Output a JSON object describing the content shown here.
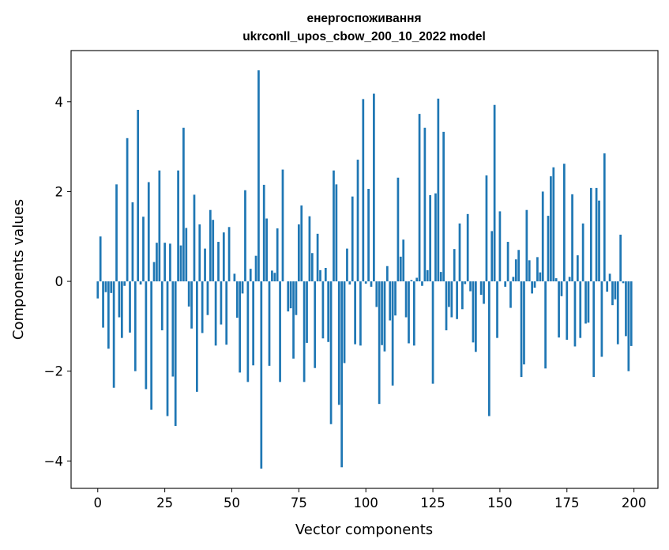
{
  "chart_data": {
    "type": "bar",
    "title": "енергоспоживання",
    "subtitle": "ukrconll_upos_cbow_200_10_2022 model",
    "xlabel": "Vector components",
    "ylabel": "Components values",
    "x": [
      0,
      1,
      2,
      3,
      4,
      5,
      6,
      7,
      8,
      9,
      10,
      11,
      12,
      13,
      14,
      15,
      16,
      17,
      18,
      19,
      20,
      21,
      22,
      23,
      24,
      25,
      26,
      27,
      28,
      29,
      30,
      31,
      32,
      33,
      34,
      35,
      36,
      37,
      38,
      39,
      40,
      41,
      42,
      43,
      44,
      45,
      46,
      47,
      48,
      49,
      50,
      51,
      52,
      53,
      54,
      55,
      56,
      57,
      58,
      59,
      60,
      61,
      62,
      63,
      64,
      65,
      66,
      67,
      68,
      69,
      70,
      71,
      72,
      73,
      74,
      75,
      76,
      77,
      78,
      79,
      80,
      81,
      82,
      83,
      84,
      85,
      86,
      87,
      88,
      89,
      90,
      91,
      92,
      93,
      94,
      95,
      96,
      97,
      98,
      99,
      100,
      101,
      102,
      103,
      104,
      105,
      106,
      107,
      108,
      109,
      110,
      111,
      112,
      113,
      114,
      115,
      116,
      117,
      118,
      119,
      120,
      121,
      122,
      123,
      124,
      125,
      126,
      127,
      128,
      129,
      130,
      131,
      132,
      133,
      134,
      135,
      136,
      137,
      138,
      139,
      140,
      141,
      142,
      143,
      144,
      145,
      146,
      147,
      148,
      149,
      150,
      151,
      152,
      153,
      154,
      155,
      156,
      157,
      158,
      159,
      160,
      161,
      162,
      163,
      164,
      165,
      166,
      167,
      168,
      169,
      170,
      171,
      172,
      173,
      174,
      175,
      176,
      177,
      178,
      179,
      180,
      181,
      182,
      183,
      184,
      185,
      186,
      187,
      188,
      189,
      190,
      191,
      192,
      193,
      194,
      195,
      196,
      197,
      198,
      199
    ],
    "values": [
      -0.38,
      1.0,
      -1.03,
      -0.24,
      -1.5,
      -0.26,
      -2.37,
      2.16,
      -0.8,
      -1.26,
      -0.1,
      3.19,
      -1.14,
      1.76,
      -2.0,
      3.82,
      -0.07,
      1.44,
      -2.4,
      2.21,
      -2.86,
      0.43,
      0.86,
      2.47,
      -1.09,
      0.86,
      -3.0,
      0.84,
      -2.12,
      -3.22,
      2.47,
      0.8,
      3.42,
      1.19,
      -0.56,
      -1.05,
      1.93,
      -2.46,
      1.27,
      -1.15,
      0.73,
      -0.75,
      1.59,
      1.37,
      -1.43,
      0.88,
      -0.96,
      1.09,
      -1.41,
      1.21,
      0.0,
      0.17,
      -0.81,
      -2.03,
      -0.27,
      2.03,
      -2.24,
      0.28,
      -1.87,
      0.57,
      4.7,
      -4.17,
      2.15,
      1.4,
      -1.88,
      0.24,
      0.19,
      1.18,
      -2.24,
      2.49,
      0.0,
      -0.67,
      -0.6,
      -1.72,
      -0.75,
      1.27,
      1.69,
      -2.24,
      -1.37,
      1.45,
      0.63,
      -1.93,
      1.06,
      0.25,
      -1.27,
      0.3,
      -1.35,
      -3.18,
      2.47,
      2.16,
      -2.75,
      -4.14,
      -1.82,
      0.73,
      -0.07,
      1.89,
      -1.4,
      2.71,
      -1.43,
      4.06,
      -0.05,
      2.06,
      -0.12,
      4.18,
      -0.57,
      -2.73,
      -1.42,
      -1.56,
      0.34,
      -0.87,
      -2.32,
      -0.76,
      2.31,
      0.55,
      0.93,
      -0.8,
      -1.38,
      0.03,
      -1.43,
      0.08,
      3.73,
      -0.1,
      3.42,
      0.25,
      1.92,
      -2.28,
      1.96,
      4.07,
      0.21,
      3.33,
      -1.09,
      -0.57,
      -0.8,
      0.72,
      -0.84,
      1.29,
      -0.62,
      -0.06,
      1.5,
      -0.22,
      -1.36,
      -1.57,
      0.0,
      -0.3,
      -0.5,
      2.36,
      -3.0,
      1.12,
      3.93,
      -1.26,
      1.56,
      0.0,
      -0.12,
      0.88,
      -0.59,
      0.1,
      0.49,
      0.7,
      -2.13,
      -1.85,
      1.59,
      0.47,
      -0.27,
      -0.14,
      0.54,
      0.2,
      2.0,
      -1.94,
      1.46,
      2.34,
      2.54,
      0.07,
      -1.25,
      -0.33,
      2.62,
      -1.3,
      0.1,
      1.94,
      -1.45,
      0.58,
      -1.26,
      1.29,
      -0.94,
      -0.92,
      2.08,
      -2.13,
      2.08,
      1.8,
      -1.68,
      2.85,
      -0.23,
      0.17,
      -0.53,
      -0.4,
      -1.4,
      1.04,
      -0.04,
      -1.22,
      -2.0,
      -1.44
    ],
    "xlim": [
      -9.95,
      208.95
    ],
    "ylim": [
      -4.61,
      5.14
    ],
    "xticks": [
      "0",
      "25",
      "50",
      "75",
      "100",
      "125",
      "150",
      "175",
      "200"
    ],
    "yticks": [
      "−4",
      "−2",
      "0",
      "2",
      "4"
    ],
    "bar_color": "#1f77b4",
    "grid": false,
    "legend": "none"
  }
}
